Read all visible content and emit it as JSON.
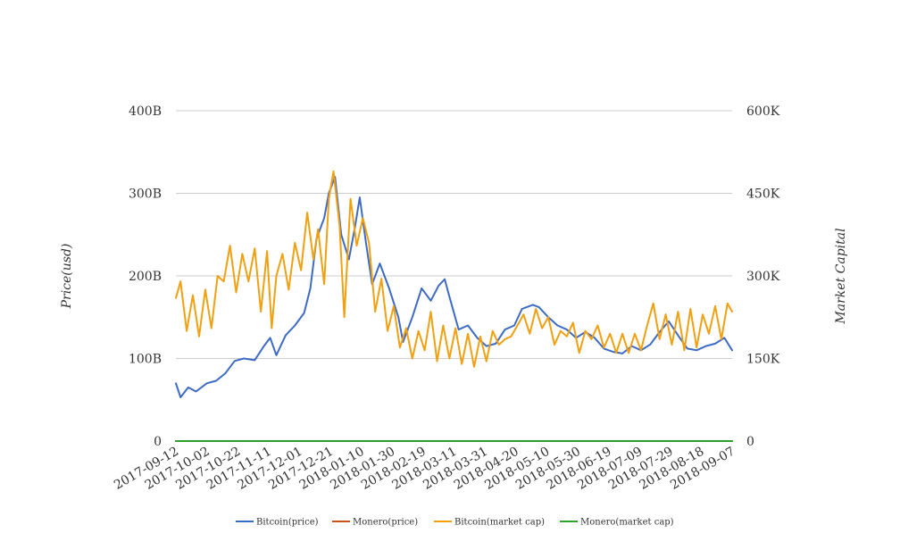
{
  "chart_data": {
    "type": "line",
    "x_axis": {
      "type": "date",
      "range": [
        "2017-09-12",
        "2018-09-07"
      ],
      "tick_labels": [
        "2017-09-12",
        "2017-10-02",
        "2017-10-22",
        "2017-11-11",
        "2017-12-01",
        "2017-12-21",
        "2018-01-10",
        "2018-01-30",
        "2018-02-19",
        "2018-03-11",
        "2018-03-31",
        "2018-04-20",
        "2018-05-10",
        "2018-05-30",
        "2018-06-19",
        "2018-07-09",
        "2018-07-29",
        "2018-08-18",
        "2018-09-07"
      ]
    },
    "y_left": {
      "label": "Price(usd)",
      "ylim": [
        0,
        400000000000
      ],
      "tick_values": [
        0,
        100000000000,
        200000000000,
        300000000000,
        400000000000
      ],
      "tick_labels": [
        "0",
        "100B",
        "200B",
        "300B",
        "400B"
      ]
    },
    "y_right": {
      "label": "Market Capital",
      "ylim": [
        0,
        600000
      ],
      "tick_values": [
        0,
        150000,
        300000,
        450000,
        600000
      ],
      "tick_labels": [
        "0",
        "150K",
        "300K",
        "450K",
        "600K"
      ]
    },
    "grid": true,
    "legend_position": "bottom",
    "series": [
      {
        "name": "Bitcoin(price)",
        "axis": "left",
        "color": "#3d6bc4",
        "x": [
          "2017-09-12",
          "2017-09-15",
          "2017-09-20",
          "2017-09-25",
          "2017-10-02",
          "2017-10-08",
          "2017-10-14",
          "2017-10-20",
          "2017-10-26",
          "2017-11-02",
          "2017-11-08",
          "2017-11-12",
          "2017-11-16",
          "2017-11-22",
          "2017-11-28",
          "2017-12-04",
          "2017-12-08",
          "2017-12-12",
          "2017-12-17",
          "2017-12-20",
          "2017-12-24",
          "2017-12-28",
          "2018-01-02",
          "2018-01-06",
          "2018-01-09",
          "2018-01-13",
          "2018-01-17",
          "2018-01-22",
          "2018-01-28",
          "2018-02-03",
          "2018-02-06",
          "2018-02-12",
          "2018-02-18",
          "2018-02-24",
          "2018-03-01",
          "2018-03-05",
          "2018-03-08",
          "2018-03-14",
          "2018-03-20",
          "2018-03-26",
          "2018-04-01",
          "2018-04-07",
          "2018-04-13",
          "2018-04-19",
          "2018-04-24",
          "2018-05-01",
          "2018-05-05",
          "2018-05-11",
          "2018-05-17",
          "2018-05-23",
          "2018-05-29",
          "2018-06-04",
          "2018-06-10",
          "2018-06-16",
          "2018-06-22",
          "2018-06-28",
          "2018-07-04",
          "2018-07-10",
          "2018-07-16",
          "2018-07-22",
          "2018-07-28",
          "2018-08-03",
          "2018-08-09",
          "2018-08-15",
          "2018-08-21",
          "2018-08-27",
          "2018-09-02",
          "2018-09-07"
        ],
        "values": [
          70000000000,
          53000000000,
          65000000000,
          60000000000,
          70000000000,
          73000000000,
          82000000000,
          97000000000,
          100000000000,
          98000000000,
          115000000000,
          125000000000,
          104000000000,
          128000000000,
          140000000000,
          155000000000,
          185000000000,
          245000000000,
          270000000000,
          300000000000,
          320000000000,
          250000000000,
          220000000000,
          260000000000,
          295000000000,
          240000000000,
          190000000000,
          215000000000,
          185000000000,
          150000000000,
          120000000000,
          150000000000,
          185000000000,
          170000000000,
          188000000000,
          196000000000,
          175000000000,
          135000000000,
          140000000000,
          125000000000,
          115000000000,
          118000000000,
          135000000000,
          140000000000,
          160000000000,
          165000000000,
          162000000000,
          150000000000,
          140000000000,
          135000000000,
          125000000000,
          132000000000,
          125000000000,
          112000000000,
          108000000000,
          106000000000,
          115000000000,
          110000000000,
          117000000000,
          132000000000,
          145000000000,
          128000000000,
          112000000000,
          110000000000,
          115000000000,
          118000000000,
          125000000000,
          110000000000
        ]
      },
      {
        "name": "Monero(price)",
        "axis": "left",
        "color": "#c8501e",
        "x": [
          "2017-09-12",
          "2018-09-07"
        ],
        "values": [
          0,
          0
        ]
      },
      {
        "name": "Bitcoin(market cap)",
        "axis": "right",
        "color": "#f0a010",
        "x": [
          "2017-09-12",
          "2017-09-15",
          "2017-09-19",
          "2017-09-23",
          "2017-09-27",
          "2017-10-01",
          "2017-10-05",
          "2017-10-09",
          "2017-10-13",
          "2017-10-17",
          "2017-10-21",
          "2017-10-25",
          "2017-10-29",
          "2017-11-02",
          "2017-11-06",
          "2017-11-10",
          "2017-11-13",
          "2017-11-16",
          "2017-11-20",
          "2017-11-24",
          "2017-11-28",
          "2017-12-02",
          "2017-12-06",
          "2017-12-10",
          "2017-12-13",
          "2017-12-17",
          "2017-12-20",
          "2017-12-23",
          "2017-12-27",
          "2017-12-30",
          "2018-01-03",
          "2018-01-07",
          "2018-01-11",
          "2018-01-15",
          "2018-01-19",
          "2018-01-23",
          "2018-01-27",
          "2018-01-31",
          "2018-02-04",
          "2018-02-08",
          "2018-02-12",
          "2018-02-16",
          "2018-02-20",
          "2018-02-24",
          "2018-02-28",
          "2018-03-04",
          "2018-03-08",
          "2018-03-12",
          "2018-03-16",
          "2018-03-20",
          "2018-03-24",
          "2018-03-28",
          "2018-04-01",
          "2018-04-05",
          "2018-04-09",
          "2018-04-13",
          "2018-04-17",
          "2018-04-21",
          "2018-04-25",
          "2018-04-29",
          "2018-05-03",
          "2018-05-07",
          "2018-05-11",
          "2018-05-15",
          "2018-05-19",
          "2018-05-23",
          "2018-05-27",
          "2018-05-31",
          "2018-06-04",
          "2018-06-08",
          "2018-06-12",
          "2018-06-16",
          "2018-06-20",
          "2018-06-24",
          "2018-06-28",
          "2018-07-02",
          "2018-07-06",
          "2018-07-10",
          "2018-07-14",
          "2018-07-18",
          "2018-07-22",
          "2018-07-26",
          "2018-07-30",
          "2018-08-03",
          "2018-08-07",
          "2018-08-11",
          "2018-08-15",
          "2018-08-19",
          "2018-08-23",
          "2018-08-27",
          "2018-08-31",
          "2018-09-04",
          "2018-09-07"
        ],
        "values": [
          260000,
          290000,
          200000,
          265000,
          190000,
          275000,
          205000,
          300000,
          290000,
          355000,
          270000,
          340000,
          290000,
          350000,
          235000,
          345000,
          205000,
          300000,
          340000,
          275000,
          360000,
          310000,
          415000,
          330000,
          385000,
          285000,
          440000,
          490000,
          390000,
          225000,
          440000,
          355000,
          405000,
          360000,
          235000,
          295000,
          200000,
          245000,
          170000,
          205000,
          150000,
          200000,
          165000,
          235000,
          145000,
          210000,
          150000,
          205000,
          140000,
          195000,
          135000,
          190000,
          145000,
          200000,
          175000,
          185000,
          190000,
          210000,
          230000,
          195000,
          240000,
          205000,
          225000,
          175000,
          200000,
          190000,
          215000,
          160000,
          200000,
          185000,
          210000,
          170000,
          195000,
          160000,
          195000,
          160000,
          195000,
          165000,
          210000,
          250000,
          185000,
          230000,
          175000,
          235000,
          165000,
          240000,
          170000,
          230000,
          195000,
          245000,
          185000,
          250000,
          235000
        ]
      },
      {
        "name": "Monero(market cap)",
        "axis": "right",
        "color": "#2ca02c",
        "x": [
          "2017-09-12",
          "2018-09-07"
        ],
        "values": [
          0,
          0
        ]
      }
    ]
  }
}
